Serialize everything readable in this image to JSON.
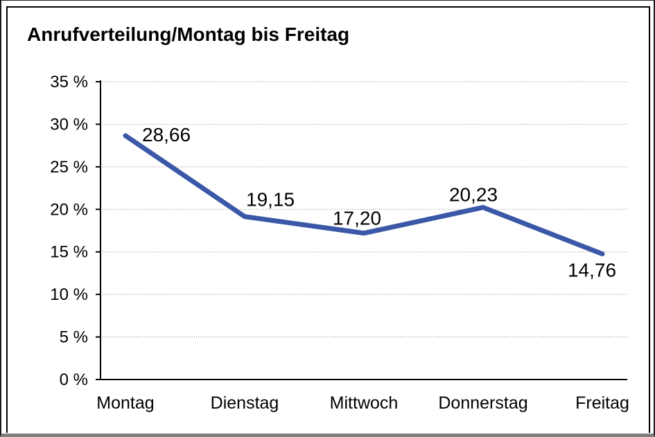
{
  "title": "Anrufverteilung/Montag bis Freitag",
  "chart_data": {
    "type": "line",
    "title": "Anrufverteilung/Montag bis Freitag",
    "categories": [
      "Montag",
      "Dienstag",
      "Mittwoch",
      "Donnerstag",
      "Freitag"
    ],
    "values": [
      28.66,
      19.15,
      17.2,
      20.23,
      14.76
    ],
    "value_labels": [
      "28,66",
      "19,15",
      "17,20",
      "20,23",
      "14,76"
    ],
    "xlabel": "",
    "ylabel": "",
    "ylim": [
      0,
      35
    ],
    "y_ticks": [
      0,
      5,
      10,
      15,
      20,
      25,
      30,
      35
    ],
    "y_tick_labels": [
      "0 %",
      "5 %",
      "10 %",
      "15 %",
      "20 %",
      "25 %",
      "30 %",
      "35 %"
    ],
    "grid": "horizontal-dotted",
    "legend": "none",
    "colors": {
      "line": "#3A58A7",
      "axis": "#000000",
      "gridline": "#8C8C8C",
      "text": "#000000"
    }
  }
}
